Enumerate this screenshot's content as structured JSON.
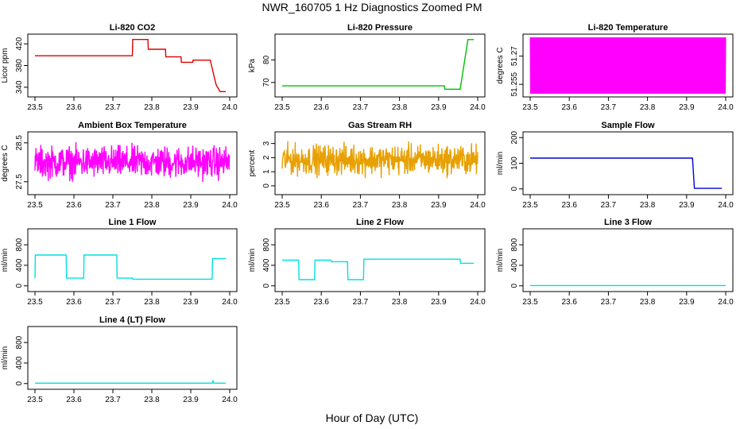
{
  "figure": {
    "title": "NWR_160705  1 Hz Diagnostics Zoomed PM",
    "xlabel": "Hour of Day (UTC)"
  },
  "chart_data": [
    {
      "type": "line",
      "title": "Li-820 CO2",
      "ylabel": "Licor ppm",
      "color": "#e00000",
      "xlim": [
        23.5,
        24.0
      ],
      "ylim": [
        328,
        432
      ],
      "xticks": [
        "23.5",
        "23.6",
        "23.7",
        "23.8",
        "23.9",
        "24.0"
      ],
      "yticks": [
        340,
        380,
        420
      ],
      "series": [
        {
          "x": [
            23.5,
            23.75,
            23.751,
            23.79,
            23.791,
            23.835,
            23.836,
            23.875,
            23.876,
            23.905,
            23.906,
            23.95,
            23.965,
            23.975,
            23.99
          ],
          "y": [
            398,
            398,
            428,
            428,
            410,
            410,
            396,
            396,
            386,
            386,
            390,
            390,
            345,
            332,
            332
          ]
        }
      ]
    },
    {
      "type": "line",
      "title": "Li-820 Pressure",
      "ylabel": "kPa",
      "color": "#00c000",
      "xlim": [
        23.5,
        24.0
      ],
      "ylim": [
        65,
        90
      ],
      "xticks": [
        "23.5",
        "23.6",
        "23.7",
        "23.8",
        "23.9",
        "24.0"
      ],
      "yticks": [
        70,
        80
      ],
      "series": [
        {
          "x": [
            23.5,
            23.915,
            23.916,
            23.955,
            23.965,
            23.975,
            23.99
          ],
          "y": [
            68.5,
            68.5,
            67,
            67,
            78,
            89,
            89
          ]
        }
      ]
    },
    {
      "type": "line",
      "title": "Li-820 Temperature",
      "ylabel": "degrees C",
      "color": "#ff00ff",
      "xlim": [
        23.5,
        24.0
      ],
      "ylim": [
        51.25,
        51.28
      ],
      "xticks": [
        "23.5",
        "23.6",
        "23.7",
        "23.8",
        "23.9",
        "24.0"
      ],
      "yticks": [
        51.255,
        51.27
      ],
      "series": [
        {
          "x": [
            23.5,
            24.0
          ],
          "y_range": [
            51.25,
            51.28
          ]
        }
      ]
    },
    {
      "type": "line",
      "title": "Ambient Box Temperature",
      "ylabel": "degrees C",
      "color": "#ff00ff",
      "xlim": [
        23.5,
        24.0
      ],
      "ylim": [
        27.25,
        28.7
      ],
      "xticks": [
        "23.5",
        "23.6",
        "23.7",
        "23.8",
        "23.9",
        "24.0"
      ],
      "yticks": [
        27.5,
        28.5
      ],
      "series": [
        {
          "x": [
            23.5,
            24.0
          ],
          "y_range": [
            27.4,
            28.6
          ]
        }
      ]
    },
    {
      "type": "line",
      "title": "Gas Stream RH",
      "ylabel": "percent",
      "color": "#e8a000",
      "xlim": [
        23.5,
        24.0
      ],
      "ylim": [
        -0.4,
        3.6
      ],
      "xticks": [
        "23.5",
        "23.6",
        "23.7",
        "23.8",
        "23.9",
        "24.0"
      ],
      "yticks": [
        0,
        1,
        2,
        3
      ],
      "series": [
        {
          "x": [
            23.5,
            24.0
          ],
          "y_range": [
            0.3,
            3.4
          ]
        }
      ]
    },
    {
      "type": "line",
      "title": "Sample Flow",
      "ylabel": "ml/min",
      "color": "#0000dd",
      "xlim": [
        23.5,
        24.0
      ],
      "ylim": [
        -10,
        210
      ],
      "xticks": [
        "23.5",
        "23.6",
        "23.7",
        "23.8",
        "23.9",
        "24.0"
      ],
      "yticks": [
        0,
        100,
        200
      ],
      "series": [
        {
          "x": [
            23.5,
            23.915,
            23.92,
            23.99
          ],
          "y": [
            120,
            120,
            2,
            2
          ]
        }
      ]
    },
    {
      "type": "line",
      "title": "Line 1 Flow",
      "ylabel": "ml/min",
      "color": "#00e0e0",
      "xlim": [
        23.5,
        24.0
      ],
      "ylim": [
        -50,
        1050
      ],
      "xticks": [
        "23.5",
        "23.6",
        "23.7",
        "23.8",
        "23.9",
        "24.0"
      ],
      "yticks": [
        0,
        400,
        800
      ],
      "series": [
        {
          "x": [
            23.5,
            23.501,
            23.58,
            23.581,
            23.625,
            23.626,
            23.71,
            23.711,
            23.75,
            23.751,
            23.955,
            23.956,
            23.99
          ],
          "y": [
            150,
            600,
            600,
            150,
            150,
            600,
            600,
            150,
            150,
            130,
            130,
            530,
            530
          ]
        }
      ]
    },
    {
      "type": "line",
      "title": "Line 2 Flow",
      "ylabel": "ml/min",
      "color": "#00e0e0",
      "xlim": [
        23.5,
        24.0
      ],
      "ylim": [
        -50,
        1050
      ],
      "xticks": [
        "23.5",
        "23.6",
        "23.7",
        "23.8",
        "23.9",
        "24.0"
      ],
      "yticks": [
        0,
        400,
        800
      ],
      "series": [
        {
          "x": [
            23.5,
            23.542,
            23.543,
            23.583,
            23.584,
            23.625,
            23.626,
            23.667,
            23.668,
            23.708,
            23.709,
            23.955,
            23.956,
            23.99
          ],
          "y": [
            500,
            500,
            120,
            120,
            500,
            500,
            470,
            470,
            120,
            120,
            520,
            520,
            440,
            440
          ]
        }
      ]
    },
    {
      "type": "line",
      "title": "Line 3 Flow",
      "ylabel": "ml/min",
      "color": "#00e0e0",
      "xlim": [
        23.5,
        24.0
      ],
      "ylim": [
        -50,
        1050
      ],
      "xticks": [
        "23.5",
        "23.6",
        "23.7",
        "23.8",
        "23.9",
        "24.0"
      ],
      "yticks": [
        0,
        400,
        800
      ],
      "series": [
        {
          "x": [
            23.5,
            24.0
          ],
          "y": [
            5,
            5
          ]
        }
      ]
    },
    {
      "type": "line",
      "title": "Line 4 (LT) Flow",
      "ylabel": "ml/min",
      "color": "#00e0e0",
      "xlim": [
        23.5,
        24.0
      ],
      "ylim": [
        -50,
        1050
      ],
      "xticks": [
        "23.5",
        "23.6",
        "23.7",
        "23.8",
        "23.9",
        "24.0"
      ],
      "yticks": [
        0,
        400,
        800
      ],
      "series": [
        {
          "x": [
            23.5,
            23.955,
            23.957,
            23.958,
            23.959,
            23.99
          ],
          "y": [
            8,
            8,
            60,
            25,
            8,
            8
          ]
        }
      ]
    }
  ]
}
